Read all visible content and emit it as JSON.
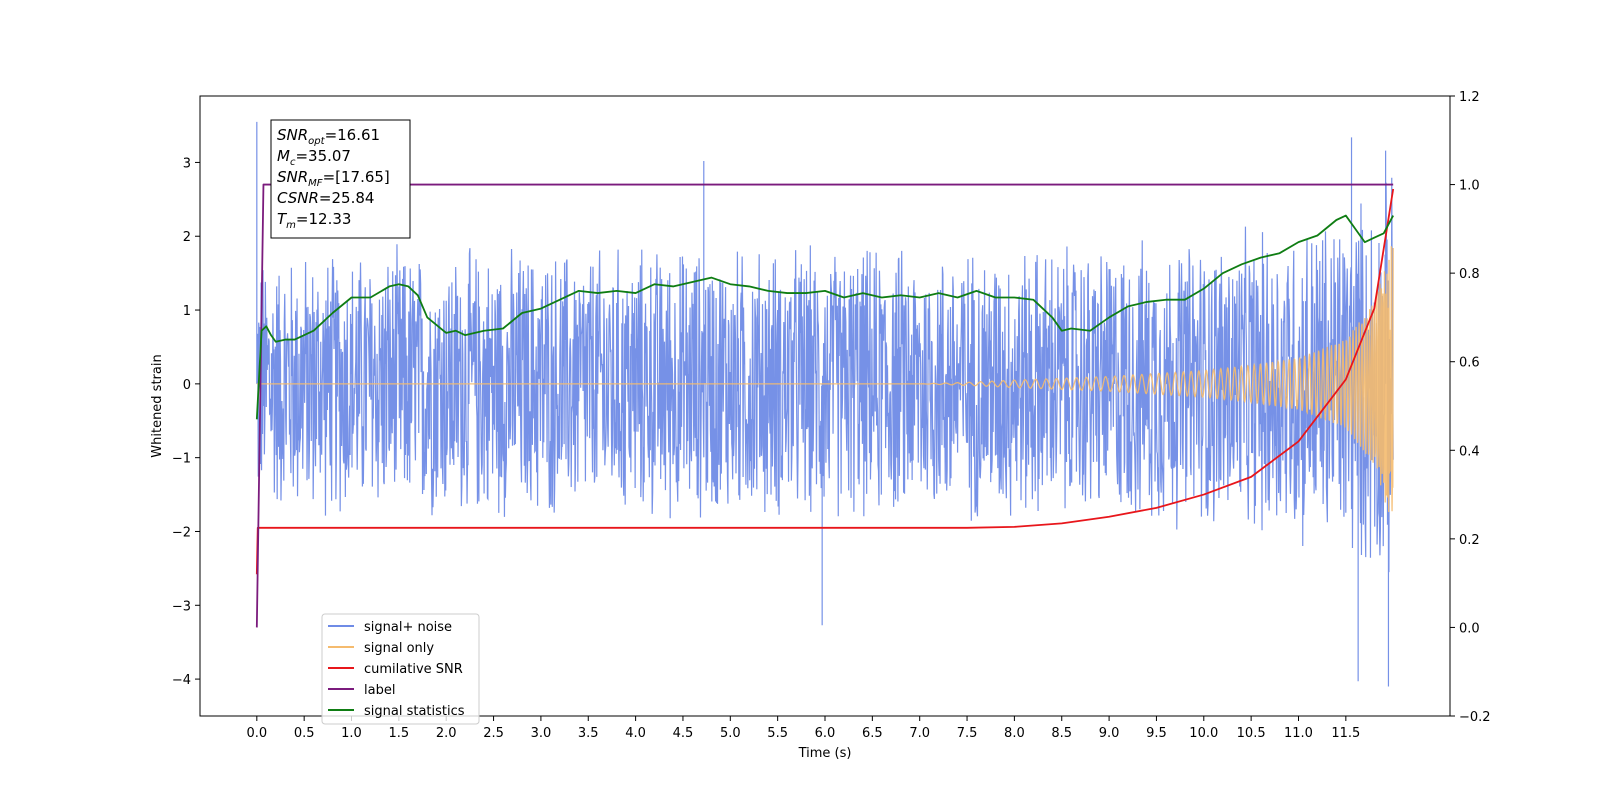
{
  "chart_data": {
    "type": "line",
    "xlabel": "Time (s)",
    "ylabel": "Whitened strain",
    "xlim": [
      -0.6,
      12.6
    ],
    "ylim": [
      -4.5,
      3.9
    ],
    "y2lim": [
      -0.2,
      1.2
    ],
    "grid": false,
    "legend_position": "bottom-left",
    "x_ticks": [
      0.0,
      0.5,
      1.0,
      1.5,
      2.0,
      2.5,
      3.0,
      3.5,
      4.0,
      4.5,
      5.0,
      5.5,
      6.0,
      6.5,
      7.0,
      7.5,
      8.0,
      8.5,
      9.0,
      9.5,
      10.0,
      10.5,
      11.0,
      11.5
    ],
    "x_tick_labels": [
      "0.0",
      "0.5",
      "1.0",
      "1.5",
      "2.0",
      "2.5",
      "3.0",
      "3.5",
      "4.0",
      "4.5",
      "5.0",
      "5.5",
      "6.0",
      "6.5",
      "7.0",
      "7.5",
      "8.0",
      "8.5",
      "9.0",
      "9.5",
      "10.0",
      "10.5",
      "11.0",
      "11.5"
    ],
    "y_ticks": [
      3,
      2,
      1,
      0,
      -1,
      -2,
      -3,
      -4
    ],
    "y_tick_labels": [
      "3",
      "2",
      "1",
      "0",
      "−1",
      "−2",
      "−3",
      "−4"
    ],
    "y2_ticks": [
      1.2,
      1.0,
      0.8,
      0.6,
      0.4,
      0.2,
      0.0,
      -0.2
    ],
    "y2_tick_labels": [
      "1.2",
      "1.0",
      "0.8",
      "0.6",
      "0.4",
      "0.2",
      "0.0",
      "−0.2"
    ],
    "annotation": {
      "lines": [
        {
          "base": "SNR",
          "sub": "opt",
          "rest": "=16.61"
        },
        {
          "base": "M",
          "sub": "c",
          "rest": "=35.07"
        },
        {
          "base": "SNR",
          "sub": "MF",
          "rest": "=[17.65]"
        },
        {
          "base": "CSNR",
          "sub": "",
          "rest": "=25.84"
        },
        {
          "base": "T",
          "sub": "m",
          "rest": "=12.33"
        }
      ]
    },
    "series": [
      {
        "name": "signal+ noise",
        "color": "#6f8be6",
        "axis": "left",
        "kind": "noise",
        "t_range": [
          0.0,
          12.0
        ],
        "envelope_points": [
          [
            0.0,
            1.9
          ],
          [
            1.0,
            1.95
          ],
          [
            4.0,
            2.0
          ],
          [
            7.0,
            2.0
          ],
          [
            9.0,
            2.05
          ],
          [
            10.5,
            2.2
          ],
          [
            11.5,
            2.6
          ],
          [
            12.0,
            3.0
          ]
        ],
        "peaks": [
          [
            0.0,
            3.55
          ],
          [
            4.72,
            3.02
          ],
          [
            5.97,
            -3.27
          ],
          [
            11.56,
            3.34
          ],
          [
            11.63,
            -4.03
          ],
          [
            11.92,
            3.16
          ],
          [
            11.95,
            -4.1
          ]
        ]
      },
      {
        "name": "signal only",
        "color": "#f5bb6e",
        "axis": "left",
        "kind": "chirp",
        "t_range": [
          0.0,
          12.0
        ],
        "amplitude_points": [
          [
            0.0,
            0.0
          ],
          [
            7.0,
            0.0
          ],
          [
            7.5,
            0.02
          ],
          [
            8.0,
            0.05
          ],
          [
            9.0,
            0.1
          ],
          [
            10.0,
            0.18
          ],
          [
            10.5,
            0.25
          ],
          [
            11.0,
            0.35
          ],
          [
            11.5,
            0.6
          ],
          [
            11.8,
            1.1
          ],
          [
            12.0,
            2.0
          ]
        ],
        "cycles": 120
      },
      {
        "name": "cumilative SNR",
        "color": "#e8161b",
        "axis": "right",
        "points": [
          [
            0.0,
            0.12
          ],
          [
            0.01,
            0.225
          ],
          [
            5.0,
            0.225
          ],
          [
            7.5,
            0.225
          ],
          [
            8.0,
            0.227
          ],
          [
            8.5,
            0.235
          ],
          [
            9.0,
            0.25
          ],
          [
            9.5,
            0.27
          ],
          [
            10.0,
            0.3
          ],
          [
            10.5,
            0.34
          ],
          [
            11.0,
            0.42
          ],
          [
            11.5,
            0.56
          ],
          [
            11.8,
            0.72
          ],
          [
            12.0,
            0.99
          ]
        ]
      },
      {
        "name": "label",
        "color": "#7b1b7d",
        "axis": "right",
        "points": [
          [
            0.0,
            0.0
          ],
          [
            0.07,
            1.0
          ],
          [
            12.0,
            1.0
          ]
        ]
      },
      {
        "name": "signal statistics",
        "color": "#0f7d13",
        "axis": "right",
        "points": [
          [
            0.0,
            0.47
          ],
          [
            0.05,
            0.67
          ],
          [
            0.1,
            0.68
          ],
          [
            0.15,
            0.66
          ],
          [
            0.2,
            0.645
          ],
          [
            0.3,
            0.65
          ],
          [
            0.4,
            0.65
          ],
          [
            0.6,
            0.67
          ],
          [
            0.8,
            0.71
          ],
          [
            1.0,
            0.745
          ],
          [
            1.2,
            0.745
          ],
          [
            1.4,
            0.77
          ],
          [
            1.5,
            0.775
          ],
          [
            1.6,
            0.77
          ],
          [
            1.7,
            0.75
          ],
          [
            1.8,
            0.7
          ],
          [
            2.0,
            0.665
          ],
          [
            2.1,
            0.67
          ],
          [
            2.2,
            0.66
          ],
          [
            2.4,
            0.67
          ],
          [
            2.6,
            0.675
          ],
          [
            2.8,
            0.71
          ],
          [
            3.0,
            0.72
          ],
          [
            3.2,
            0.74
          ],
          [
            3.4,
            0.76
          ],
          [
            3.6,
            0.755
          ],
          [
            3.8,
            0.76
          ],
          [
            4.0,
            0.755
          ],
          [
            4.2,
            0.775
          ],
          [
            4.4,
            0.77
          ],
          [
            4.6,
            0.78
          ],
          [
            4.8,
            0.79
          ],
          [
            5.0,
            0.775
          ],
          [
            5.2,
            0.77
          ],
          [
            5.4,
            0.76
          ],
          [
            5.6,
            0.755
          ],
          [
            5.8,
            0.755
          ],
          [
            6.0,
            0.76
          ],
          [
            6.2,
            0.745
          ],
          [
            6.4,
            0.755
          ],
          [
            6.6,
            0.745
          ],
          [
            6.8,
            0.75
          ],
          [
            7.0,
            0.745
          ],
          [
            7.2,
            0.755
          ],
          [
            7.4,
            0.745
          ],
          [
            7.6,
            0.76
          ],
          [
            7.8,
            0.745
          ],
          [
            8.0,
            0.745
          ],
          [
            8.2,
            0.74
          ],
          [
            8.4,
            0.7
          ],
          [
            8.5,
            0.67
          ],
          [
            8.6,
            0.675
          ],
          [
            8.8,
            0.67
          ],
          [
            9.0,
            0.7
          ],
          [
            9.2,
            0.725
          ],
          [
            9.4,
            0.735
          ],
          [
            9.6,
            0.74
          ],
          [
            9.8,
            0.74
          ],
          [
            10.0,
            0.765
          ],
          [
            10.2,
            0.8
          ],
          [
            10.4,
            0.82
          ],
          [
            10.6,
            0.835
          ],
          [
            10.8,
            0.845
          ],
          [
            11.0,
            0.87
          ],
          [
            11.2,
            0.885
          ],
          [
            11.4,
            0.92
          ],
          [
            11.5,
            0.93
          ],
          [
            11.6,
            0.9
          ],
          [
            11.7,
            0.87
          ],
          [
            11.8,
            0.88
          ],
          [
            11.9,
            0.89
          ],
          [
            12.0,
            0.93
          ]
        ]
      }
    ]
  }
}
